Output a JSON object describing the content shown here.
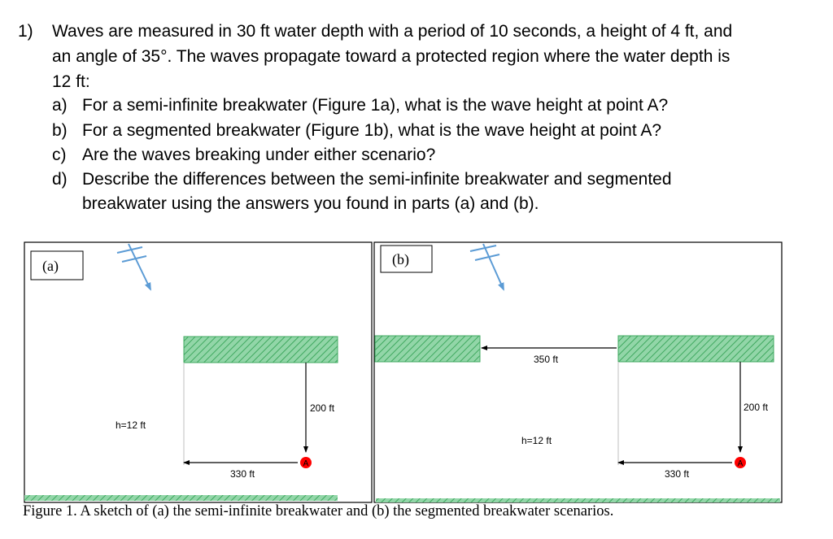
{
  "question": {
    "number": "1)",
    "stem_lines": [
      "Waves are measured in 30 ft water depth with a period of 10 seconds, a height of 4 ft, and",
      "an angle of 35°. The waves propagate toward a protected region where the water depth is",
      "12 ft:"
    ],
    "parts": [
      {
        "letter": "a)",
        "lines": [
          "For a semi-infinite breakwater (Figure 1a), what is the wave height at point A?"
        ]
      },
      {
        "letter": "b)",
        "lines": [
          "For a segmented breakwater (Figure 1b), what is the wave height at point A?"
        ]
      },
      {
        "letter": "c)",
        "lines": [
          "Are the waves breaking under either scenario?"
        ]
      },
      {
        "letter": "d)",
        "lines": [
          "Describe the differences between the semi-infinite breakwater and segmented",
          "breakwater using the answers you found in parts (a) and (b)."
        ]
      }
    ]
  },
  "figure": {
    "panel_a": {
      "label": "(a)",
      "depth_label": "h=12 ft",
      "vertical_dim": "200 ft",
      "horizontal_dim": "330 ft",
      "point_label": "A"
    },
    "panel_b": {
      "label": "(b)",
      "gap_dim": "350 ft",
      "depth_label": "h=12 ft",
      "vertical_dim": "200 ft",
      "horizontal_dim": "330 ft",
      "point_label": "A"
    },
    "caption": "Figure 1. A sketch of (a) the semi-infinite breakwater and (b) the segmented breakwater scenarios.",
    "colors": {
      "breakwater_fill": "#92d6a8",
      "breakwater_hatch": "#3fa85f",
      "wave_arrow": "#5b9bd5",
      "point_A": "#ff0000"
    }
  }
}
